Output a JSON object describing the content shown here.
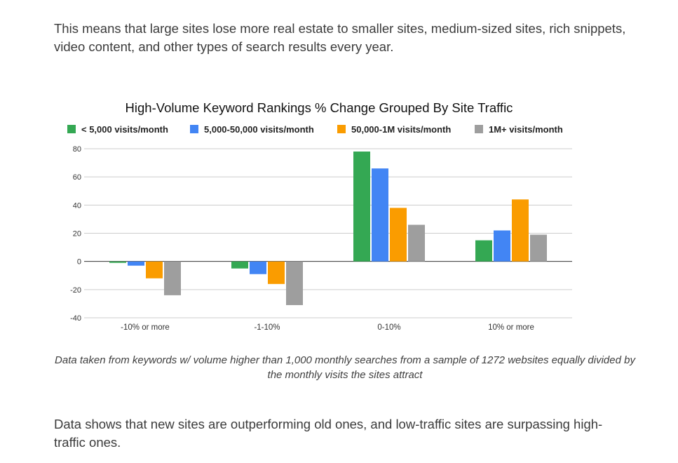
{
  "article": {
    "para_top": "This means that large sites lose more real estate to smaller sites, medium-sized sites, rich snippets, video content, and other types of search results every year.",
    "caption": "Data taken from keywords w/ volume higher than 1,000 monthly searches from a sample of 1272 websites equally divided by the monthly visits the sites attract",
    "para_bottom": "Data shows that new sites are outperforming old ones, and low-traffic sites are surpassing high-traffic ones."
  },
  "chart_data": {
    "type": "bar",
    "title": "High-Volume Keyword Rankings % Change Grouped By Site Traffic",
    "xlabel": "",
    "ylabel": "",
    "categories": [
      "-10% or more",
      "-1-10%",
      "0-10%",
      "10% or more"
    ],
    "series": [
      {
        "name": "< 5,000 visits/month",
        "color": "#34a853",
        "values": [
          -1,
          -5,
          78,
          15
        ]
      },
      {
        "name": "5,000-50,000 visits/month",
        "color": "#4285f4",
        "values": [
          -3,
          -9,
          66,
          22
        ]
      },
      {
        "name": "50,000-1M visits/month",
        "color": "#fa9c00",
        "values": [
          -12,
          -16,
          38,
          44
        ]
      },
      {
        "name": "1M+ visits/month",
        "color": "#9e9e9e",
        "values": [
          -24,
          -31,
          26,
          19
        ]
      }
    ],
    "ylim": [
      -40,
      80
    ],
    "yticks": [
      -40,
      -20,
      0,
      20,
      40,
      60,
      80
    ],
    "grid": true,
    "legend_position": "top"
  }
}
